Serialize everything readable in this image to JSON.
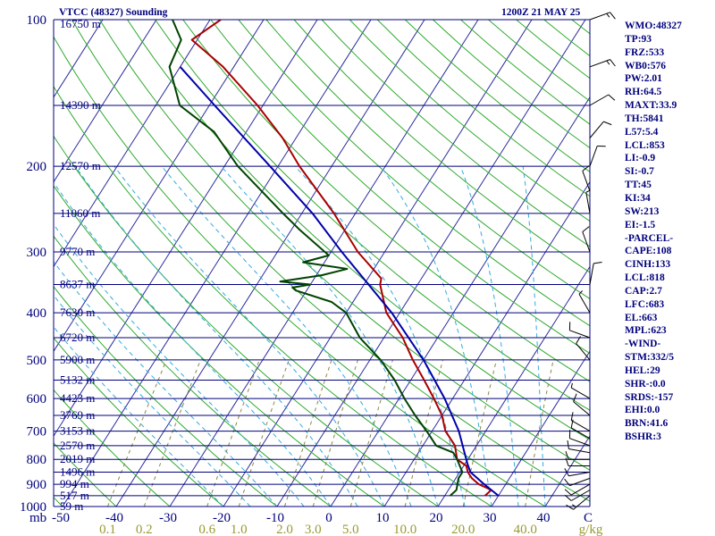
{
  "chart_data": {
    "type": "line",
    "title": "VTCC (48327) Sounding",
    "subtitle": "1200Z 21 MAY 25",
    "xlabel": "",
    "ylabel": "",
    "x_axis": {
      "temperature_ticks": [
        "-50",
        "-40",
        "-30",
        "-20",
        "-10",
        "0",
        "10",
        "20",
        "30",
        "40",
        "C"
      ],
      "mixing_ratio_ticks": [
        "0.1",
        "0.2",
        "0.6",
        "1.0",
        "2.0",
        "3.0",
        "5.0",
        "10.0",
        "20.0",
        "40.0",
        "g/kg"
      ],
      "pressure_unit": "mb",
      "xlim": [
        -50,
        50
      ]
    },
    "y_axis": {
      "scale": "log",
      "ylim": [
        1000,
        100
      ],
      "pressure_levels": [
        100,
        150,
        200,
        250,
        300,
        350,
        400,
        450,
        500,
        550,
        600,
        650,
        700,
        750,
        800,
        850,
        900,
        950,
        1000
      ],
      "pressure_labels": [
        {
          "p": 100,
          "label": "100"
        },
        {
          "p": 200,
          "label": "200"
        },
        {
          "p": 300,
          "label": "300"
        },
        {
          "p": 400,
          "label": "400"
        },
        {
          "p": 500,
          "label": "500"
        },
        {
          "p": 600,
          "label": "600"
        },
        {
          "p": 700,
          "label": "700"
        },
        {
          "p": 800,
          "label": "800"
        },
        {
          "p": 900,
          "label": "900"
        },
        {
          "p": 1000,
          "label": "1000"
        }
      ],
      "height_labels": [
        {
          "p": 100,
          "label": "16750 m"
        },
        {
          "p": 150,
          "label": "14390 m"
        },
        {
          "p": 200,
          "label": "12570 m"
        },
        {
          "p": 250,
          "label": "11060 m"
        },
        {
          "p": 300,
          "label": "9770 m"
        },
        {
          "p": 350,
          "label": "8637 m"
        },
        {
          "p": 400,
          "label": "7630 m"
        },
        {
          "p": 450,
          "label": "6720 m"
        },
        {
          "p": 500,
          "label": "5900 m"
        },
        {
          "p": 550,
          "label": "5132 m"
        },
        {
          "p": 600,
          "label": "4423 m"
        },
        {
          "p": 650,
          "label": "3769 m"
        },
        {
          "p": 700,
          "label": "3153 m"
        },
        {
          "p": 750,
          "label": "2570 m"
        },
        {
          "p": 800,
          "label": "2019 m"
        },
        {
          "p": 850,
          "label": "1496 m"
        },
        {
          "p": 900,
          "label": "994 m"
        },
        {
          "p": 950,
          "label": "517 m"
        },
        {
          "p": 1000,
          "label": "59 m"
        }
      ]
    },
    "series": [
      {
        "id": "temperature",
        "color": "#aa0000",
        "points": [
          {
            "p": 950,
            "t": 27.5
          },
          {
            "p": 925,
            "t": 28
          },
          {
            "p": 900,
            "t": 25
          },
          {
            "p": 875,
            "t": 23
          },
          {
            "p": 850,
            "t": 21.5
          },
          {
            "p": 825,
            "t": 20.5
          },
          {
            "p": 800,
            "t": 18
          },
          {
            "p": 750,
            "t": 16
          },
          {
            "p": 700,
            "t": 12.5
          },
          {
            "p": 650,
            "t": 10
          },
          {
            "p": 600,
            "t": 6.5
          },
          {
            "p": 550,
            "t": 2.5
          },
          {
            "p": 500,
            "t": -2
          },
          {
            "p": 450,
            "t": -6.5
          },
          {
            "p": 400,
            "t": -12.5
          },
          {
            "p": 350,
            "t": -17
          },
          {
            "p": 340,
            "t": -17.5
          },
          {
            "p": 300,
            "t": -25
          },
          {
            "p": 250,
            "t": -34
          },
          {
            "p": 200,
            "t": -46
          },
          {
            "p": 175,
            "t": -52.5
          },
          {
            "p": 150,
            "t": -61
          },
          {
            "p": 125,
            "t": -72
          },
          {
            "p": 110,
            "t": -81
          },
          {
            "p": 100,
            "t": -78
          }
        ]
      },
      {
        "id": "dewpoint",
        "color": "#004200",
        "points": [
          {
            "p": 950,
            "t": 21
          },
          {
            "p": 925,
            "t": 21.5
          },
          {
            "p": 900,
            "t": 21
          },
          {
            "p": 875,
            "t": 20.5
          },
          {
            "p": 850,
            "t": 20.5
          },
          {
            "p": 800,
            "t": 18
          },
          {
            "p": 775,
            "t": 16.5
          },
          {
            "p": 750,
            "t": 12.5
          },
          {
            "p": 700,
            "t": 9
          },
          {
            "p": 650,
            "t": 5
          },
          {
            "p": 600,
            "t": 1
          },
          {
            "p": 550,
            "t": -3
          },
          {
            "p": 500,
            "t": -8
          },
          {
            "p": 450,
            "t": -14.5
          },
          {
            "p": 400,
            "t": -20
          },
          {
            "p": 380,
            "t": -24
          },
          {
            "p": 360,
            "t": -32
          },
          {
            "p": 355,
            "t": -33
          },
          {
            "p": 350,
            "t": -30
          },
          {
            "p": 345,
            "t": -36
          },
          {
            "p": 335,
            "t": -29
          },
          {
            "p": 325,
            "t": -25
          },
          {
            "p": 315,
            "t": -34
          },
          {
            "p": 305,
            "t": -30
          },
          {
            "p": 270,
            "t": -38.5
          },
          {
            "p": 250,
            "t": -43.5
          },
          {
            "p": 200,
            "t": -57.5
          },
          {
            "p": 170,
            "t": -66
          },
          {
            "p": 150,
            "t": -75.5
          },
          {
            "p": 125,
            "t": -82
          },
          {
            "p": 110,
            "t": -83
          },
          {
            "p": 100,
            "t": -87
          }
        ]
      },
      {
        "id": "parcel",
        "color": "#0000aa",
        "points": [
          {
            "p": 950,
            "t": 30
          },
          {
            "p": 900,
            "t": 26
          },
          {
            "p": 850,
            "t": 22
          },
          {
            "p": 818,
            "t": 20.5
          },
          {
            "p": 700,
            "t": 15
          },
          {
            "p": 600,
            "t": 8.5
          },
          {
            "p": 500,
            "t": 0
          },
          {
            "p": 400,
            "t": -11.5
          },
          {
            "p": 300,
            "t": -28
          },
          {
            "p": 250,
            "t": -38
          },
          {
            "p": 200,
            "t": -51.5
          },
          {
            "p": 150,
            "t": -69
          },
          {
            "p": 125,
            "t": -80
          }
        ]
      }
    ],
    "wind_barbs": [
      {
        "p": 950,
        "dir": 230,
        "kt": 15
      },
      {
        "p": 925,
        "dir": 240,
        "kt": 10
      },
      {
        "p": 900,
        "dir": 240,
        "kt": 10
      },
      {
        "p": 875,
        "dir": 250,
        "kt": 10
      },
      {
        "p": 850,
        "dir": 260,
        "kt": 10
      },
      {
        "p": 825,
        "dir": 270,
        "kt": 10
      },
      {
        "p": 800,
        "dir": 270,
        "kt": 10
      },
      {
        "p": 775,
        "dir": 280,
        "kt": 10
      },
      {
        "p": 750,
        "dir": 290,
        "kt": 10
      },
      {
        "p": 725,
        "dir": 300,
        "kt": 10
      },
      {
        "p": 700,
        "dir": 300,
        "kt": 10
      },
      {
        "p": 650,
        "dir": 310,
        "kt": 10
      },
      {
        "p": 600,
        "dir": 300,
        "kt": 5
      },
      {
        "p": 500,
        "dir": 320,
        "kt": 10
      },
      {
        "p": 450,
        "dir": 290,
        "kt": 10
      },
      {
        "p": 400,
        "dir": 330,
        "kt": 5
      },
      {
        "p": 350,
        "dir": 10,
        "kt": 10
      },
      {
        "p": 300,
        "dir": 340,
        "kt": 10
      },
      {
        "p": 250,
        "dir": 350,
        "kt": 5
      },
      {
        "p": 225,
        "dir": 340,
        "kt": 10
      },
      {
        "p": 200,
        "dir": 20,
        "kt": 10
      },
      {
        "p": 175,
        "dir": 40,
        "kt": 10
      },
      {
        "p": 150,
        "dir": 60,
        "kt": 10
      },
      {
        "p": 125,
        "dir": 70,
        "kt": 15
      },
      {
        "p": 100,
        "dir": 70,
        "kt": 15
      }
    ],
    "grid": true,
    "legend": "none",
    "colors": {
      "isobar": "#00007c",
      "isotherm": "#2b2b9e",
      "dry_adiabat": "#2faa2f",
      "moist_adiabat": "#33aadd",
      "mixing_ratio": "#888844",
      "label_blue": "#00007c",
      "label_olive": "#999933"
    }
  },
  "indices": [
    "WMO:48327",
    "TP:93",
    "FRZ:533",
    "WB0:576",
    "PW:2.01",
    "RH:64.5",
    "MAXT:33.9",
    "TH:5841",
    "L57:5.4",
    "LCL:853",
    "LI:-0.9",
    "SI:-0.7",
    "TT:45",
    "KI:34",
    "SW:213",
    "EI:-1.5",
    "-PARCEL-",
    "CAPE:108",
    "CINH:133",
    "LCL:818",
    "CAP:2.7",
    "LFC:683",
    "EL:663",
    "MPL:623",
    "-WIND-",
    "STM:332/5",
    "HEL:29",
    "SHR-:0.0",
    "SRDS:-157",
    "EHI:0.0",
    "BRN:41.6",
    "BSHR:3"
  ]
}
